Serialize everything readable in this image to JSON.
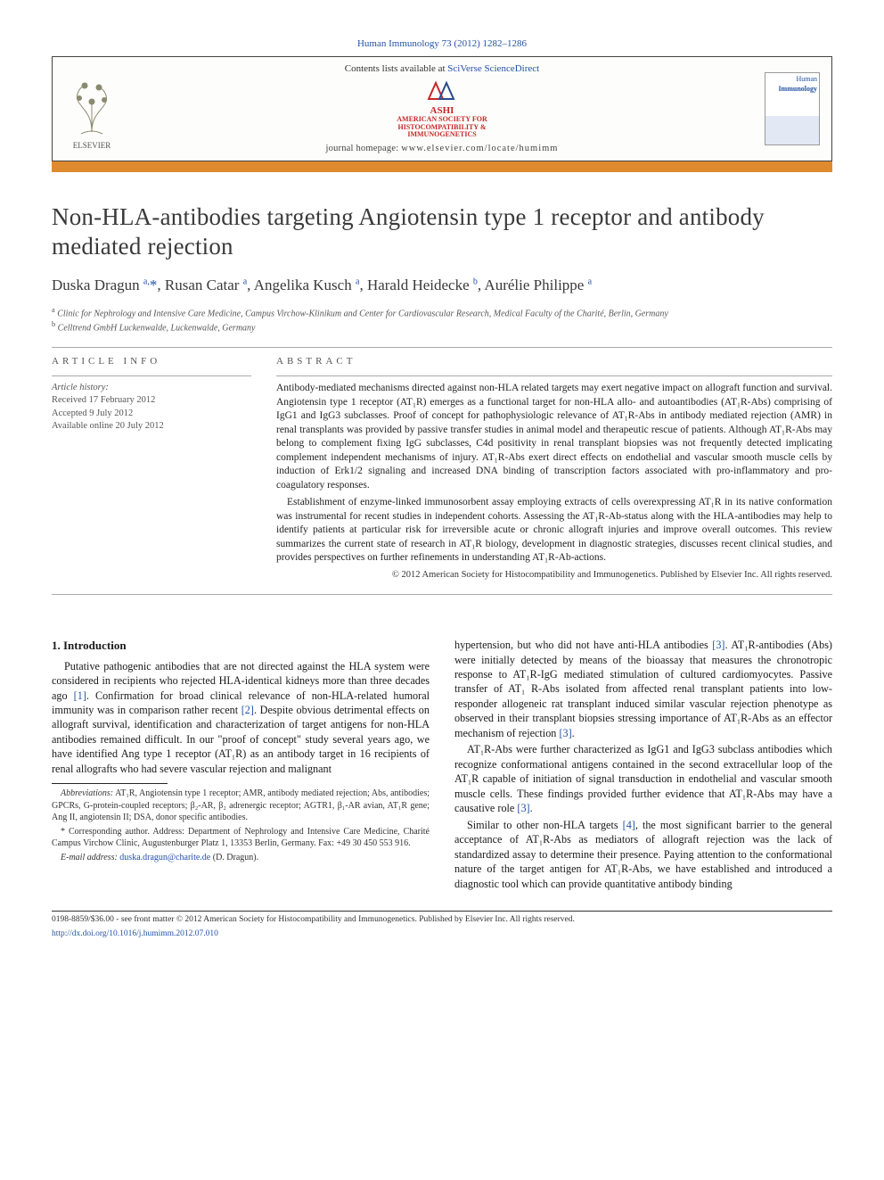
{
  "journal_citation": "Human Immunology 73 (2012) 1282–1286",
  "header": {
    "elsevier_word": "ELSEVIER",
    "contents_prefix": "Contents lists available at ",
    "contents_link": "SciVerse ScienceDirect",
    "ashi_lines": [
      "ASHI",
      "AMERICAN SOCIETY FOR",
      "HISTOCOMPATIBILITY &",
      "IMMUNOGENETICS"
    ],
    "homepage_label": "journal homepage: ",
    "homepage_url": "www.elsevier.com/locate/humimm",
    "cover_title_1": "Human",
    "cover_title_2": "Immunology"
  },
  "colors": {
    "accent_bar": "#e08a2f",
    "link": "#2452a3",
    "elsevier_orange": "#e98b2e",
    "ashi_red": "#c62828",
    "rule": "#aaaaaa",
    "text": "#1a1a1a"
  },
  "title": "Non-HLA-antibodies targeting Angiotensin type 1 receptor and antibody mediated rejection",
  "authors_html": "Duska Dragun <sup>a,</sup><span class='corr'>*</span>, Rusan Catar <sup>a</sup>, Angelika Kusch <sup>a</sup>, Harald Heidecke <sup>b</sup>, Aurélie Philippe <sup>a</sup>",
  "affiliations": [
    {
      "tag": "a",
      "text": "Clinic for Nephrology and Intensive Care Medicine, Campus Virchow-Klinikum and Center for Cardiovascular Research, Medical Faculty of the Charité, Berlin, Germany"
    },
    {
      "tag": "b",
      "text": "Celltrend GmbH Luckenwalde, Luckenwalde, Germany"
    }
  ],
  "article_info": {
    "label": "article info",
    "history_label": "Article history:",
    "lines": [
      "Received 17 February 2012",
      "Accepted 9 July 2012",
      "Available online 20 July 2012"
    ]
  },
  "abstract": {
    "label": "abstract",
    "paragraphs": [
      "Antibody-mediated mechanisms directed against non-HLA related targets may exert negative impact on allograft function and survival. Angiotensin type 1 receptor (AT₁R) emerges as a functional target for non-HLA allo- and autoantibodies (AT₁R-Abs) comprising of IgG1 and IgG3 subclasses. Proof of concept for pathophysiologic relevance of AT₁R-Abs in antibody mediated rejection (AMR) in renal transplants was provided by passive transfer studies in animal model and therapeutic rescue of patients. Although AT₁R-Abs may belong to complement fixing IgG subclasses, C4d positivity in renal transplant biopsies was not frequently detected implicating complement independent mechanisms of injury. AT₁R-Abs exert direct effects on endothelial and vascular smooth muscle cells by induction of Erk1/2 signaling and increased DNA binding of transcription factors associated with pro-inflammatory and pro-coagulatory responses.",
      "Establishment of enzyme-linked immunosorbent assay employing extracts of cells overexpressing AT₁R in its native conformation was instrumental for recent studies in independent cohorts. Assessing the AT₁R-Ab-status along with the HLA-antibodies may help to identify patients at particular risk for irreversible acute or chronic allograft injuries and improve overall outcomes. This review summarizes the current state of research in AT₁R biology, development in diagnostic strategies, discusses recent clinical studies, and provides perspectives on further refinements in understanding AT₁R-Ab-actions."
    ],
    "copyright": "© 2012 American Society for Histocompatibility and Immunogenetics. Published by Elsevier Inc. All rights reserved."
  },
  "body": {
    "section_title": "1. Introduction",
    "paragraphs": [
      "Putative pathogenic antibodies that are not directed against the HLA system were considered in recipients who rejected HLA-identical kidneys more than three decades ago [1]. Confirmation for broad clinical relevance of non-HLA-related humoral immunity was in comparison rather recent [2]. Despite obvious detrimental effects on allograft survival, identification and characterization of target antigens for non-HLA antibodies remained difficult. In our \"proof of concept\" study several years ago, we have identified Ang type 1 receptor (AT₁R) as an antibody target in 16 recipients of renal allografts who had severe vascular rejection and malignant",
      "hypertension, but who did not have anti-HLA antibodies [3]. AT₁R-antibodies (Abs) were initially detected by means of the bioassay that measures the chronotropic response to AT₁R-IgG mediated stimulation of cultured cardiomyocytes. Passive transfer of AT₁ R-Abs isolated from affected renal transplant patients into low-responder allogeneic rat transplant induced similar vascular rejection phenotype as observed in their transplant biopsies stressing importance of AT₁R-Abs as an effector mechanism of rejection [3].",
      "AT₁R-Abs were further characterized as IgG1 and IgG3 subclass antibodies which recognize conformational antigens contained in the second extracellular loop of the AT₁R capable of initiation of signal transduction in endothelial and vascular smooth muscle cells. These findings provided further evidence that AT₁R-Abs may have a causative role [3].",
      "Similar to other non-HLA targets [4], the most significant barrier to the general acceptance of AT₁R-Abs as mediators of allograft rejection was the lack of standardized assay to determine their presence. Paying attention to the conformational nature of the target antigen for AT₁R-Abs, we have established and introduced a diagnostic tool which can provide quantitative antibody binding"
    ]
  },
  "footnotes": {
    "abbrev_label": "Abbreviations:",
    "abbrev_text": " AT₁R, Angiotensin type 1 receptor; AMR, antibody mediated rejection; Abs, antibodies; GPCRs, G-protein-coupled receptors; β₂-AR, β₂ adrenergic receptor; AGTR1, β₁-AR avian, AT₁R gene; Ang II, angiotensin II; DSA, donor specific antibodies.",
    "corr_symbol": "*",
    "corr_text": " Corresponding author. Address: Department of Nephrology and Intensive Care Medicine, Charité Campus Virchow Clinic, Augustenburger Platz 1, 13353 Berlin, Germany. Fax: +49 30 450 553 916.",
    "email_label": "E-mail address:",
    "email_value": " duska.dragun@charite.de",
    "email_tail": " (D. Dragun)."
  },
  "bottom": {
    "line1": "0198-8859/$36.00 - see front matter © 2012 American Society for Histocompatibility and Immunogenetics. Published by Elsevier Inc. All rights reserved.",
    "doi_url": "http://dx.doi.org/10.1016/j.humimm.2012.07.010"
  }
}
